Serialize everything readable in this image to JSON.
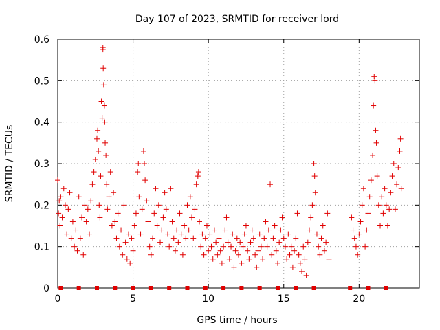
{
  "chart_data": {
    "type": "scatter",
    "title": "Day 107 of 2023, SRMTID for receiver lord",
    "xlabel": "GPS time / hours",
    "ylabel": "SRMTID / TECUs",
    "xlim": [
      0,
      24
    ],
    "ylim": [
      0,
      0.6
    ],
    "xticks": [
      0,
      5,
      10,
      15,
      20
    ],
    "yticks": [
      0,
      0.1,
      0.2,
      0.3,
      0.4,
      0.5,
      0.6
    ],
    "xtick_labels": [
      "0",
      "5",
      "10",
      "15",
      "20"
    ],
    "ytick_labels": [
      "0",
      "0.1",
      "0.2",
      "0.3",
      "0.4",
      "0.5",
      "0.6"
    ],
    "grid": true,
    "marker": "+",
    "color": "#e00000",
    "series": [
      {
        "name": "SRMTID",
        "points": [
          [
            0.0,
            0.26
          ],
          [
            0.05,
            0.18
          ],
          [
            0.1,
            0.21
          ],
          [
            0.15,
            0.15
          ],
          [
            0.2,
            0.22
          ],
          [
            0.3,
            0.17
          ],
          [
            0.4,
            0.24
          ],
          [
            0.5,
            0.2
          ],
          [
            0.6,
            0.13
          ],
          [
            0.7,
            0.19
          ],
          [
            0.8,
            0.23
          ],
          [
            0.9,
            0.12
          ],
          [
            1.0,
            0.16
          ],
          [
            1.1,
            0.1
          ],
          [
            1.2,
            0.14
          ],
          [
            1.3,
            0.09
          ],
          [
            1.4,
            0.22
          ],
          [
            1.5,
            0.12
          ],
          [
            1.6,
            0.17
          ],
          [
            1.7,
            0.08
          ],
          [
            1.8,
            0.2
          ],
          [
            1.9,
            0.16
          ],
          [
            2.0,
            0.19
          ],
          [
            2.1,
            0.13
          ],
          [
            2.2,
            0.21
          ],
          [
            2.3,
            0.25
          ],
          [
            2.4,
            0.28
          ],
          [
            2.5,
            0.31
          ],
          [
            2.6,
            0.36
          ],
          [
            2.65,
            0.38
          ],
          [
            2.7,
            0.33
          ],
          [
            2.75,
            0.2
          ],
          [
            2.8,
            0.17
          ],
          [
            2.85,
            0.27
          ],
          [
            2.9,
            0.45
          ],
          [
            2.95,
            0.41
          ],
          [
            3.0,
            0.58
          ],
          [
            3.0,
            0.575
          ],
          [
            3.02,
            0.53
          ],
          [
            3.05,
            0.49
          ],
          [
            3.1,
            0.44
          ],
          [
            3.12,
            0.4
          ],
          [
            3.15,
            0.35
          ],
          [
            3.2,
            0.32
          ],
          [
            3.25,
            0.25
          ],
          [
            3.3,
            0.19
          ],
          [
            3.4,
            0.22
          ],
          [
            3.5,
            0.28
          ],
          [
            3.6,
            0.15
          ],
          [
            3.7,
            0.23
          ],
          [
            3.8,
            0.16
          ],
          [
            3.9,
            0.12
          ],
          [
            4.0,
            0.18
          ],
          [
            4.1,
            0.1
          ],
          [
            4.2,
            0.14
          ],
          [
            4.3,
            0.08
          ],
          [
            4.4,
            0.2
          ],
          [
            4.5,
            0.11
          ],
          [
            4.6,
            0.07
          ],
          [
            4.7,
            0.13
          ],
          [
            4.8,
            0.06
          ],
          [
            4.9,
            0.12
          ],
          [
            5.0,
            0.09
          ],
          [
            5.1,
            0.15
          ],
          [
            5.2,
            0.18
          ],
          [
            5.3,
            0.28
          ],
          [
            5.35,
            0.3
          ],
          [
            5.4,
            0.22
          ],
          [
            5.5,
            0.13
          ],
          [
            5.6,
            0.19
          ],
          [
            5.7,
            0.33
          ],
          [
            5.75,
            0.3
          ],
          [
            5.8,
            0.26
          ],
          [
            5.9,
            0.21
          ],
          [
            6.0,
            0.16
          ],
          [
            6.1,
            0.1
          ],
          [
            6.2,
            0.08
          ],
          [
            6.3,
            0.12
          ],
          [
            6.4,
            0.18
          ],
          [
            6.5,
            0.24
          ],
          [
            6.6,
            0.15
          ],
          [
            6.7,
            0.2
          ],
          [
            6.8,
            0.11
          ],
          [
            6.9,
            0.14
          ],
          [
            7.0,
            0.17
          ],
          [
            7.1,
            0.23
          ],
          [
            7.2,
            0.19
          ],
          [
            7.3,
            0.13
          ],
          [
            7.4,
            0.1
          ],
          [
            7.5,
            0.24
          ],
          [
            7.6,
            0.16
          ],
          [
            7.7,
            0.12
          ],
          [
            7.8,
            0.09
          ],
          [
            7.9,
            0.14
          ],
          [
            8.0,
            0.11
          ],
          [
            8.1,
            0.18
          ],
          [
            8.2,
            0.13
          ],
          [
            8.3,
            0.08
          ],
          [
            8.4,
            0.15
          ],
          [
            8.5,
            0.12
          ],
          [
            8.6,
            0.2
          ],
          [
            8.7,
            0.14
          ],
          [
            8.8,
            0.22
          ],
          [
            8.9,
            0.17
          ],
          [
            9.0,
            0.12
          ],
          [
            9.1,
            0.19
          ],
          [
            9.2,
            0.25
          ],
          [
            9.3,
            0.27
          ],
          [
            9.35,
            0.28
          ],
          [
            9.4,
            0.16
          ],
          [
            9.5,
            0.1
          ],
          [
            9.6,
            0.13
          ],
          [
            9.7,
            0.08
          ],
          [
            9.8,
            0.12
          ],
          [
            9.9,
            0.15
          ],
          [
            10.0,
            0.09
          ],
          [
            10.1,
            0.13
          ],
          [
            10.2,
            0.1
          ],
          [
            10.3,
            0.07
          ],
          [
            10.4,
            0.14
          ],
          [
            10.5,
            0.11
          ],
          [
            10.6,
            0.08
          ],
          [
            10.7,
            0.12
          ],
          [
            10.8,
            0.09
          ],
          [
            10.9,
            0.06
          ],
          [
            11.0,
            0.1
          ],
          [
            11.1,
            0.14
          ],
          [
            11.2,
            0.17
          ],
          [
            11.3,
            0.11
          ],
          [
            11.4,
            0.07
          ],
          [
            11.5,
            0.1
          ],
          [
            11.6,
            0.13
          ],
          [
            11.7,
            0.05
          ],
          [
            11.8,
            0.09
          ],
          [
            11.9,
            0.12
          ],
          [
            12.0,
            0.08
          ],
          [
            12.1,
            0.11
          ],
          [
            12.2,
            0.06
          ],
          [
            12.3,
            0.1
          ],
          [
            12.4,
            0.13
          ],
          [
            12.5,
            0.15
          ],
          [
            12.6,
            0.09
          ],
          [
            12.7,
            0.07
          ],
          [
            12.8,
            0.11
          ],
          [
            12.9,
            0.14
          ],
          [
            13.0,
            0.12
          ],
          [
            13.1,
            0.08
          ],
          [
            13.2,
            0.05
          ],
          [
            13.3,
            0.09
          ],
          [
            13.4,
            0.13
          ],
          [
            13.5,
            0.1
          ],
          [
            13.6,
            0.07
          ],
          [
            13.7,
            0.12
          ],
          [
            13.8,
            0.16
          ],
          [
            13.9,
            0.1
          ],
          [
            14.0,
            0.14
          ],
          [
            14.1,
            0.25
          ],
          [
            14.2,
            0.08
          ],
          [
            14.3,
            0.12
          ],
          [
            14.4,
            0.15
          ],
          [
            14.5,
            0.09
          ],
          [
            14.6,
            0.06
          ],
          [
            14.7,
            0.11
          ],
          [
            14.8,
            0.14
          ],
          [
            14.9,
            0.17
          ],
          [
            15.0,
            0.12
          ],
          [
            15.1,
            0.1
          ],
          [
            15.2,
            0.07
          ],
          [
            15.3,
            0.13
          ],
          [
            15.4,
            0.08
          ],
          [
            15.5,
            0.1
          ],
          [
            15.6,
            0.05
          ],
          [
            15.7,
            0.09
          ],
          [
            15.8,
            0.12
          ],
          [
            15.9,
            0.18
          ],
          [
            16.0,
            0.08
          ],
          [
            16.1,
            0.06
          ],
          [
            16.2,
            0.04
          ],
          [
            16.3,
            0.1
          ],
          [
            16.4,
            0.07
          ],
          [
            16.5,
            0.03
          ],
          [
            16.6,
            0.11
          ],
          [
            16.7,
            0.14
          ],
          [
            16.8,
            0.17
          ],
          [
            16.9,
            0.2
          ],
          [
            17.0,
            0.3
          ],
          [
            17.05,
            0.27
          ],
          [
            17.1,
            0.23
          ],
          [
            17.2,
            0.13
          ],
          [
            17.3,
            0.1
          ],
          [
            17.4,
            0.08
          ],
          [
            17.5,
            0.12
          ],
          [
            17.6,
            0.15
          ],
          [
            17.7,
            0.09
          ],
          [
            17.8,
            0.11
          ],
          [
            17.9,
            0.18
          ],
          [
            18.0,
            0.07
          ],
          [
            19.5,
            0.17
          ],
          [
            19.6,
            0.14
          ],
          [
            19.7,
            0.12
          ],
          [
            19.8,
            0.1
          ],
          [
            19.9,
            0.08
          ],
          [
            20.0,
            0.13
          ],
          [
            20.1,
            0.16
          ],
          [
            20.2,
            0.2
          ],
          [
            20.3,
            0.24
          ],
          [
            20.4,
            0.1
          ],
          [
            20.5,
            0.14
          ],
          [
            20.6,
            0.18
          ],
          [
            20.7,
            0.22
          ],
          [
            20.8,
            0.26
          ],
          [
            20.9,
            0.32
          ],
          [
            20.95,
            0.44
          ],
          [
            21.0,
            0.51
          ],
          [
            21.05,
            0.5
          ],
          [
            21.1,
            0.38
          ],
          [
            21.15,
            0.35
          ],
          [
            21.2,
            0.27
          ],
          [
            21.3,
            0.2
          ],
          [
            21.4,
            0.15
          ],
          [
            21.5,
            0.22
          ],
          [
            21.6,
            0.18
          ],
          [
            21.7,
            0.24
          ],
          [
            21.8,
            0.2
          ],
          [
            21.9,
            0.15
          ],
          [
            22.0,
            0.19
          ],
          [
            22.1,
            0.23
          ],
          [
            22.2,
            0.27
          ],
          [
            22.3,
            0.3
          ],
          [
            22.4,
            0.19
          ],
          [
            22.5,
            0.25
          ],
          [
            22.6,
            0.29
          ],
          [
            22.7,
            0.33
          ],
          [
            22.75,
            0.36
          ],
          [
            22.8,
            0.24
          ]
        ]
      }
    ],
    "baseline_markers_x": [
      0.2,
      1.4,
      2.6,
      3.8,
      5.0,
      6.2,
      7.4,
      8.6,
      9.8,
      11.0,
      12.2,
      13.4,
      14.6,
      15.8,
      17.0,
      19.4,
      20.6,
      21.8
    ]
  }
}
